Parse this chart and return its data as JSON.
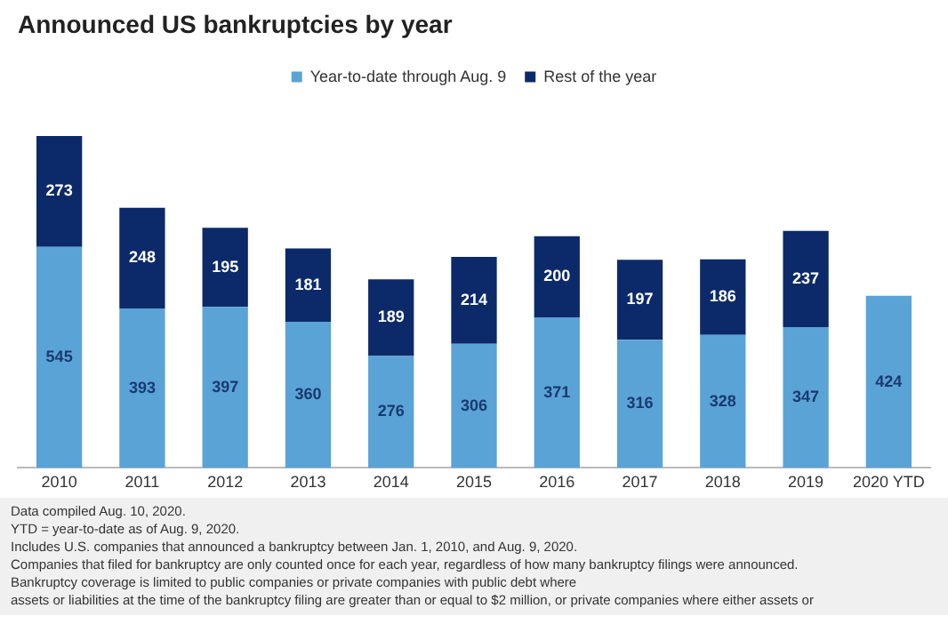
{
  "chart_data": {
    "type": "bar",
    "title": "Announced US bankruptcies by year",
    "categories": [
      "2010",
      "2011",
      "2012",
      "2013",
      "2014",
      "2015",
      "2016",
      "2017",
      "2018",
      "2019",
      "2020 YTD"
    ],
    "series": [
      {
        "name": "Year-to-date through Aug. 9",
        "color": "#5aa3d6",
        "values": [
          545,
          393,
          397,
          360,
          276,
          306,
          371,
          316,
          328,
          347,
          424
        ]
      },
      {
        "name": "Rest of the year",
        "color": "#0c2a6a",
        "values": [
          273,
          248,
          195,
          181,
          189,
          214,
          200,
          197,
          186,
          237,
          null
        ]
      }
    ],
    "stacked": true,
    "data_labels": true,
    "grid": false,
    "legend": "top",
    "annotations": [
      "Data compiled Aug. 10, 2020.",
      "YTD = year-to-date as of Aug. 9, 2020.",
      "Includes U.S. companies that announced a bankruptcy between Jan. 1, 2010, and Aug. 9, 2020.",
      "Companies that filed for bankruptcy are only counted once for each year, regardless of how many bankruptcy filings were announced.",
      "Bankruptcy coverage is limited to public companies or private companies with public debt where",
      "assets or liabilities at the time of the bankruptcy filing are greater than or equal to $2 million, or private companies where either assets or"
    ]
  }
}
